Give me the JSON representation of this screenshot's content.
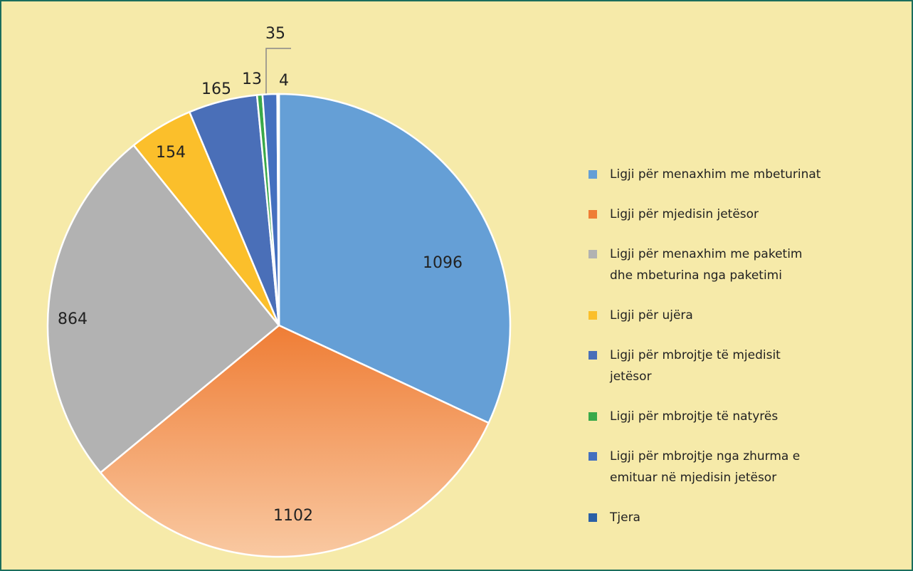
{
  "chart_data": {
    "type": "pie",
    "categories": [
      "Ligji për menaxhim me mbeturinat",
      "Ligji për mjedisin jetësor",
      "Ligji për menaxhim me paketim dhe mbeturina nga paketimi",
      "Ligji për ujëra",
      "Ligji për mbrojtje të mjedisit jetësor",
      "Ligji për mbrojtje të natyrës",
      "Ligji për mbrojtje nga zhurma e emituar në mjedisin jetësor",
      "Tjera"
    ],
    "values": [
      1096,
      1102,
      864,
      154,
      165,
      13,
      35,
      4
    ],
    "colors": [
      "#659fd6",
      "#ef7d35",
      "#b2b2b2",
      "#fbbf2b",
      "#4a6fb8",
      "#3aa94a",
      "#4470bf",
      "#2b60a6"
    ],
    "legend": "right"
  }
}
